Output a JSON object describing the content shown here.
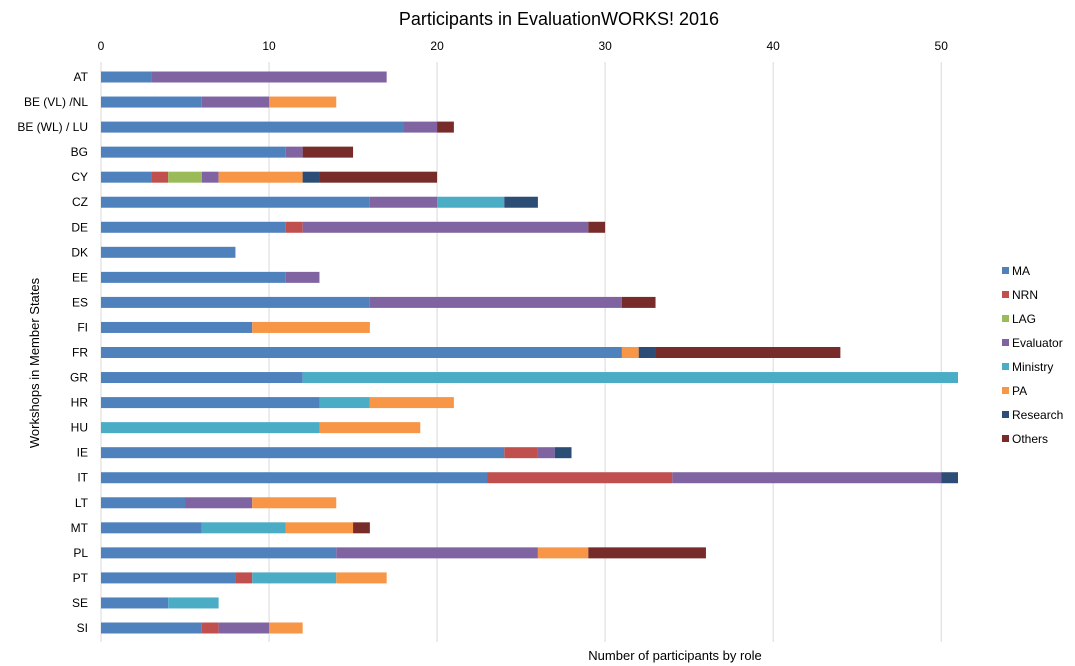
{
  "chart_data": {
    "type": "bar",
    "orientation": "horizontal",
    "stacked": true,
    "title": "Participants in EvaluationWORKS! 2016",
    "xlabel": "Number of participants by role",
    "ylabel": "Workshops in Member States",
    "xlim": [
      0,
      51
    ],
    "x_ticks": [
      0,
      10,
      20,
      30,
      40,
      50
    ],
    "grid": true,
    "legend_position": "right",
    "categories": [
      "AT",
      "BE (VL) /NL",
      "BE (WL) / LU",
      "BG",
      "CY",
      "CZ",
      "DE",
      "DK",
      "EE",
      "ES",
      "FI",
      "FR",
      "GR",
      "HR",
      "HU",
      "IE",
      "IT",
      "LT",
      "MT",
      "PL",
      "PT",
      "SE",
      "SI"
    ],
    "series": [
      {
        "name": "MA",
        "color": "#4f81bd",
        "values": [
          3,
          6,
          18,
          11,
          3,
          16,
          11,
          8,
          11,
          16,
          9,
          31,
          12,
          13,
          0,
          24,
          23,
          5,
          6,
          14,
          8,
          4,
          6
        ]
      },
      {
        "name": "NRN",
        "color": "#c0504d",
        "values": [
          0,
          0,
          0,
          0,
          1,
          0,
          1,
          0,
          0,
          0,
          0,
          0,
          0,
          0,
          0,
          2,
          11,
          0,
          0,
          0,
          1,
          0,
          1
        ]
      },
      {
        "name": "LAG",
        "color": "#9bbb59",
        "values": [
          0,
          0,
          0,
          0,
          2,
          0,
          0,
          0,
          0,
          0,
          0,
          0,
          0,
          0,
          0,
          0,
          0,
          0,
          0,
          0,
          0,
          0,
          0
        ]
      },
      {
        "name": "Evaluator",
        "color": "#8064a2",
        "values": [
          14,
          4,
          2,
          1,
          1,
          4,
          17,
          0,
          2,
          15,
          0,
          0,
          0,
          0,
          0,
          1,
          16,
          4,
          0,
          12,
          0,
          0,
          3
        ]
      },
      {
        "name": "Ministry",
        "color": "#4bacc6",
        "values": [
          0,
          0,
          0,
          0,
          0,
          4,
          0,
          0,
          0,
          0,
          0,
          0,
          39,
          3,
          13,
          0,
          0,
          0,
          5,
          0,
          5,
          3,
          0
        ]
      },
      {
        "name": "PA",
        "color": "#f79646",
        "values": [
          0,
          4,
          0,
          0,
          5,
          0,
          0,
          0,
          0,
          0,
          7,
          1,
          0,
          5,
          6,
          0,
          0,
          5,
          4,
          3,
          3,
          0,
          2
        ]
      },
      {
        "name": "Research",
        "color": "#2c4d75",
        "values": [
          0,
          0,
          0,
          0,
          1,
          2,
          0,
          0,
          0,
          0,
          0,
          1,
          0,
          0,
          0,
          1,
          1,
          0,
          0,
          0,
          0,
          0,
          0
        ]
      },
      {
        "name": "Others",
        "color": "#772c2a",
        "values": [
          0,
          0,
          1,
          3,
          7,
          0,
          1,
          0,
          0,
          2,
          0,
          11,
          0,
          0,
          0,
          0,
          0,
          0,
          1,
          7,
          0,
          0,
          0
        ]
      }
    ]
  }
}
